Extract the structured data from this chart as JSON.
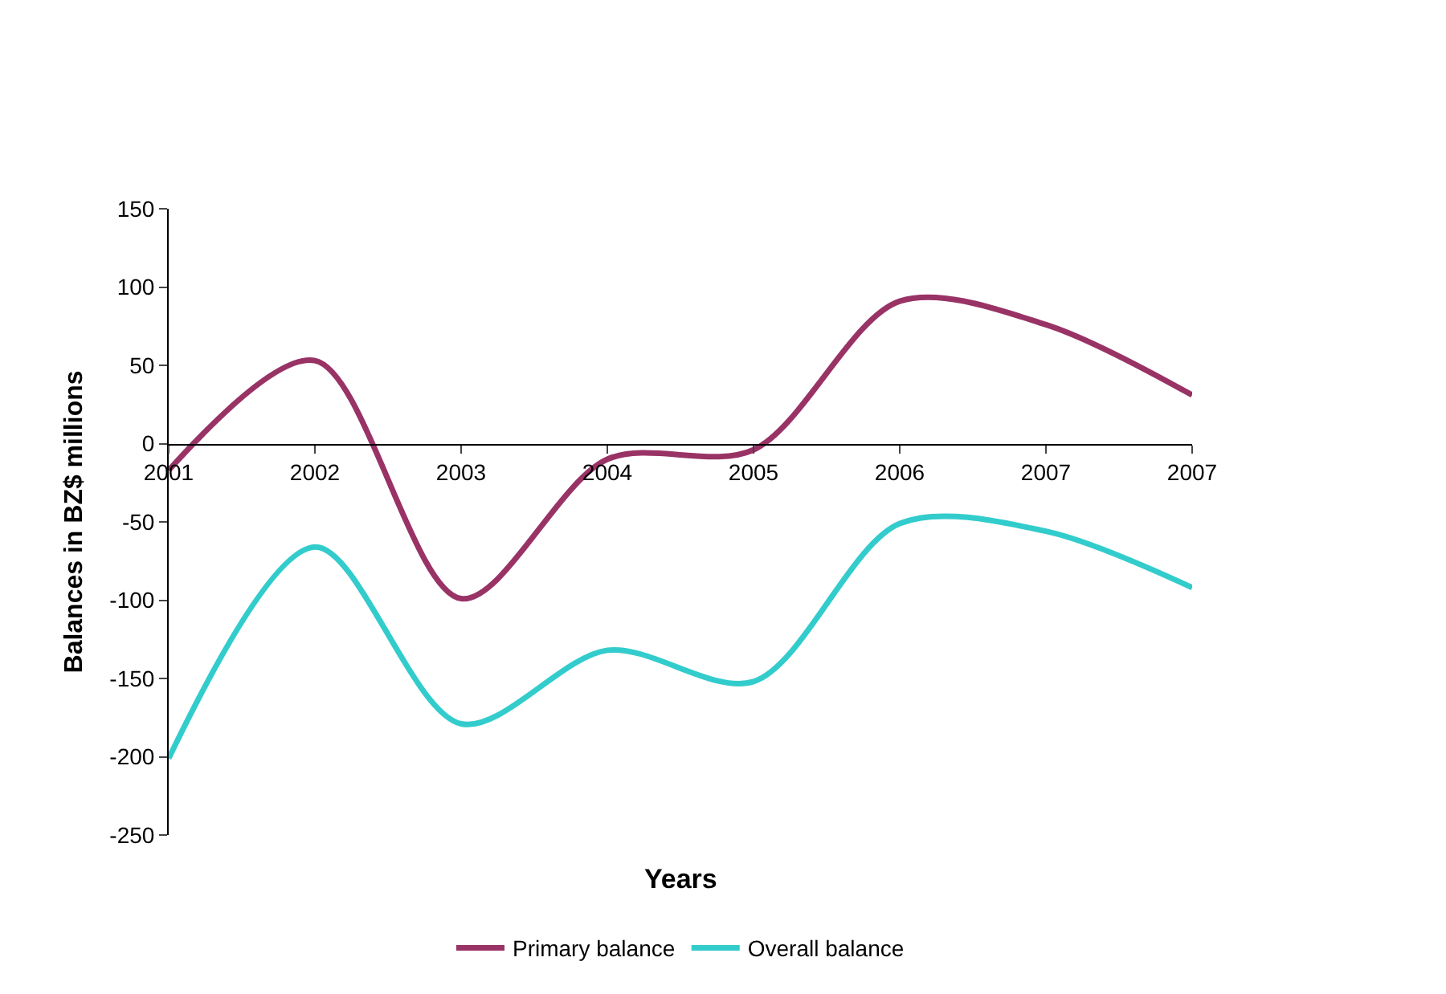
{
  "chart_data": {
    "type": "line",
    "xlabel": "Years",
    "ylabel": "Balances in BZ$ millions",
    "categories": [
      "2001",
      "2002",
      "2003",
      "2004",
      "2005",
      "2006",
      "2007",
      "2007"
    ],
    "series": [
      {
        "name": "Primary balance",
        "color": "#993366",
        "values": [
          -17,
          53,
          -99,
          -10,
          -4,
          91,
          76,
          31
        ]
      },
      {
        "name": "Overall balance",
        "color": "#33cccc",
        "values": [
          -201,
          -66,
          -179,
          -132,
          -152,
          -51,
          -56,
          -92
        ]
      }
    ],
    "ylim": [
      -250,
      150
    ],
    "yticks": [
      -250,
      -200,
      -150,
      -100,
      -50,
      0,
      50,
      100,
      150
    ],
    "grid": false,
    "legend": "bottom",
    "marker": "none",
    "line_style": "solid"
  }
}
